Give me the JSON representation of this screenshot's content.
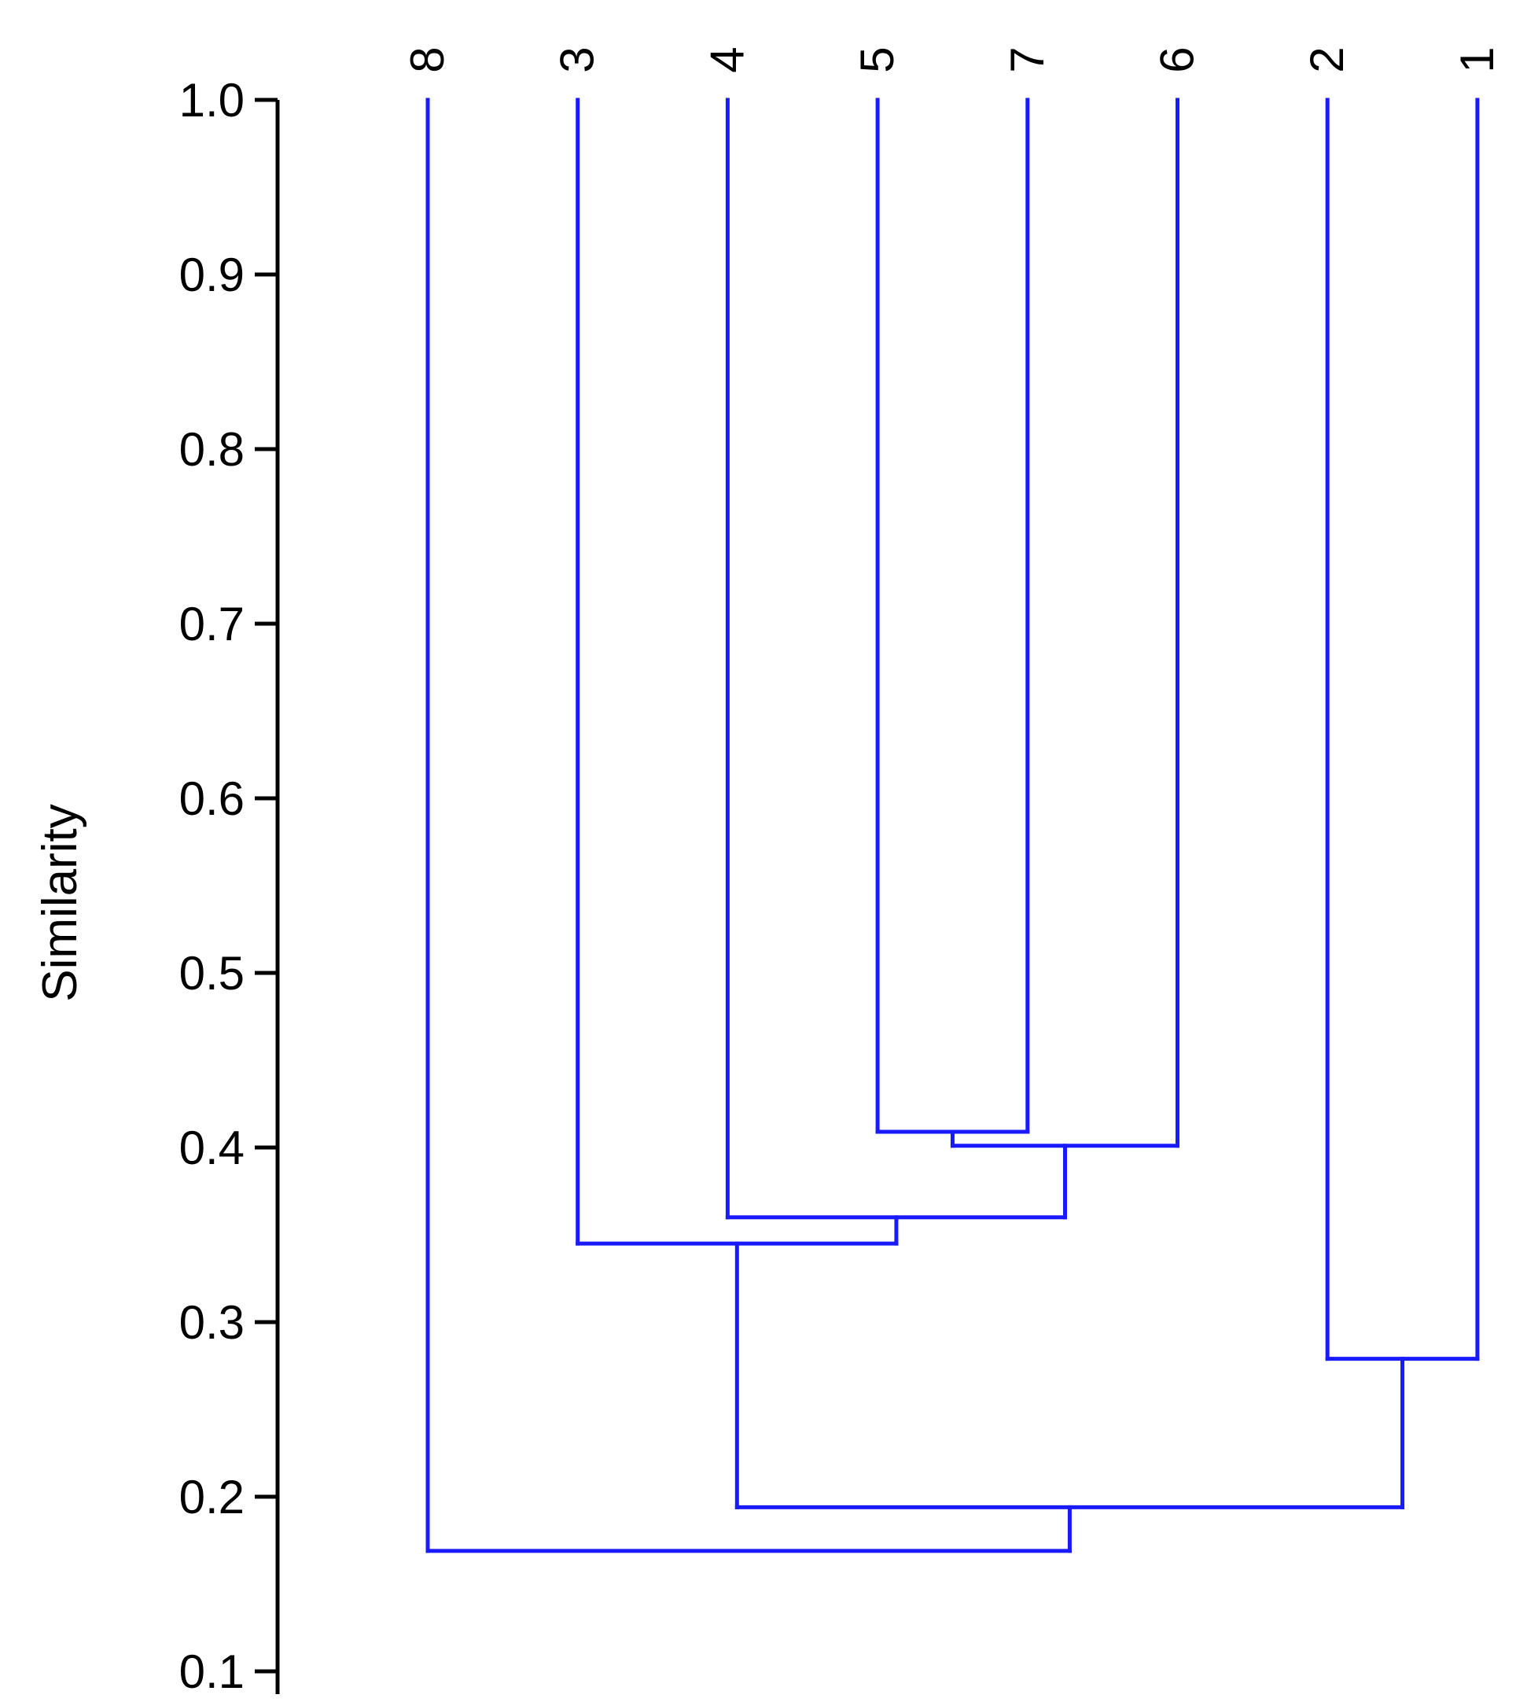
{
  "chart_data": {
    "type": "dendrogram",
    "ylabel": "Similarity",
    "ylim": [
      0.1,
      1.0
    ],
    "yticks": [
      "0.1",
      "0.2",
      "0.3",
      "0.4",
      "0.5",
      "0.6",
      "0.7",
      "0.8",
      "0.9",
      "1.0"
    ],
    "leaves": [
      "8",
      "3",
      "4",
      "5",
      "7",
      "6",
      "2",
      "1"
    ],
    "merges": [
      {
        "children": [
          "5",
          "7"
        ],
        "similarity": 0.409
      },
      {
        "children": [
          "5+7",
          "6"
        ],
        "similarity": 0.401
      },
      {
        "children": [
          "4",
          "5+7+6"
        ],
        "similarity": 0.36
      },
      {
        "children": [
          "3",
          "4+5+7+6"
        ],
        "similarity": 0.345
      },
      {
        "children": [
          "2",
          "1"
        ],
        "similarity": 0.279
      },
      {
        "children": [
          "3+4+5+7+6",
          "2+1"
        ],
        "similarity": 0.194
      },
      {
        "children": [
          "8",
          "3+4+5+7+6+2+1"
        ],
        "similarity": 0.169
      }
    ],
    "grid": false,
    "legend": "none"
  },
  "colors": {
    "branch": "#1a1aff",
    "axis": "#000000",
    "background": "#ffffff"
  }
}
